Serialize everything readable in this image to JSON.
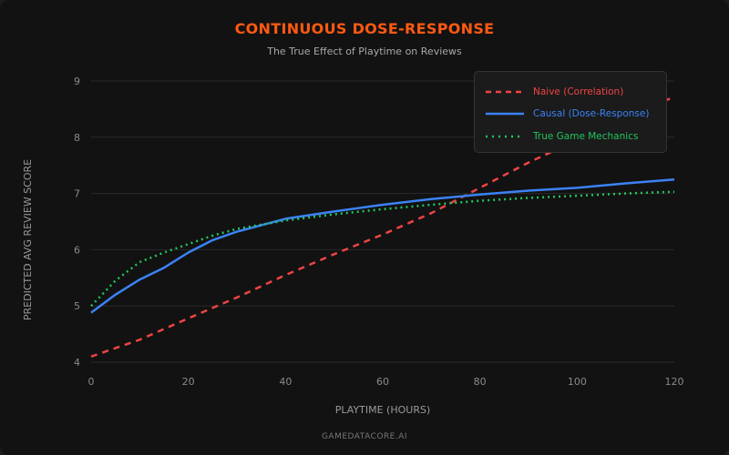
{
  "chart_data": {
    "type": "line",
    "title": "CONTINUOUS DOSE-RESPONSE",
    "subtitle": "The True Effect of Playtime on Reviews",
    "xlabel": "PLAYTIME (HOURS)",
    "ylabel": "PREDICTED AVG REVIEW SCORE",
    "xlim": [
      0,
      120
    ],
    "ylim": [
      4,
      9
    ],
    "xticks": [
      0,
      20,
      40,
      60,
      80,
      100,
      120
    ],
    "yticks": [
      4,
      5,
      6,
      7,
      8,
      9
    ],
    "grid": "horizontal",
    "legend_position": "top-right",
    "series": [
      {
        "name": "Naive (Correlation)",
        "color": "#ef4444",
        "style": "dashed",
        "x": [
          0,
          10,
          20,
          30,
          40,
          50,
          60,
          70,
          80,
          90,
          100,
          110,
          120
        ],
        "y": [
          4.1,
          4.4,
          4.78,
          5.15,
          5.55,
          5.92,
          6.27,
          6.65,
          7.1,
          7.55,
          7.95,
          8.35,
          8.72
        ]
      },
      {
        "name": "Causal (Dose-Response)",
        "color": "#3b82f6",
        "style": "solid",
        "x": [
          0,
          5,
          10,
          15,
          20,
          25,
          30,
          40,
          50,
          60,
          70,
          80,
          90,
          100,
          110,
          120
        ],
        "y": [
          4.88,
          5.2,
          5.47,
          5.68,
          5.95,
          6.17,
          6.32,
          6.55,
          6.68,
          6.8,
          6.9,
          6.98,
          7.05,
          7.1,
          7.18,
          7.25
        ]
      },
      {
        "name": "True Game Mechanics",
        "color": "#22c55e",
        "style": "dotted",
        "x": [
          0,
          5,
          10,
          15,
          20,
          25,
          30,
          40,
          50,
          60,
          70,
          80,
          90,
          100,
          110,
          120
        ],
        "y": [
          5.0,
          5.45,
          5.78,
          5.95,
          6.1,
          6.25,
          6.37,
          6.52,
          6.63,
          6.72,
          6.8,
          6.87,
          6.92,
          6.96,
          7.0,
          7.03
        ]
      }
    ]
  },
  "footer": "GAMEDATACORE.AI"
}
